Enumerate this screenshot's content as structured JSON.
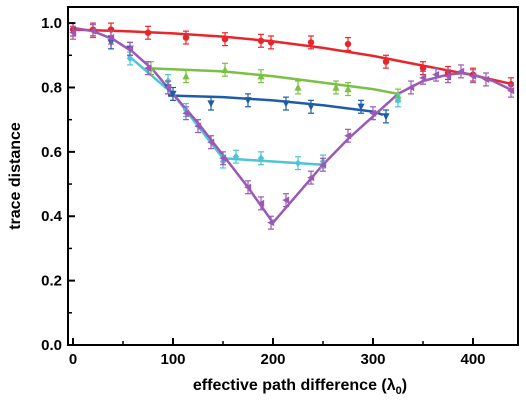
{
  "chart_data": {
    "type": "scatter",
    "title": "",
    "xlabel": "effective path difference (λ",
    "xlabel_subscript": "0",
    "xlabel_suffix": ")",
    "ylabel": "trace distance",
    "xlim": [
      -5,
      445
    ],
    "ylim": [
      0.0,
      1.05
    ],
    "x_ticks": [
      0,
      100,
      200,
      300,
      400
    ],
    "y_ticks": [
      0.0,
      0.2,
      0.4,
      0.6,
      0.8,
      1.0
    ],
    "x_tick_labels": [
      "0",
      "100",
      "200",
      "300",
      "400"
    ],
    "y_tick_labels": [
      "0.0",
      "0.2",
      "0.4",
      "0.6",
      "0.8",
      "1.0"
    ],
    "grid": false,
    "series": [
      {
        "color": "#e8262a",
        "marker": "circle",
        "fit_x": [
          0,
          20,
          50,
          100,
          150,
          200,
          250,
          300,
          350,
          400,
          440
        ],
        "fit_y": [
          0.98,
          0.978,
          0.975,
          0.968,
          0.958,
          0.943,
          0.923,
          0.898,
          0.868,
          0.838,
          0.81
        ],
        "points": [
          {
            "x": 0,
            "y": 0.98,
            "err": 0.02
          },
          {
            "x": 20,
            "y": 0.98,
            "err": 0.02
          },
          {
            "x": 38,
            "y": 0.98,
            "err": 0.02
          },
          {
            "x": 75,
            "y": 0.97,
            "err": 0.02
          },
          {
            "x": 113,
            "y": 0.955,
            "err": 0.02
          },
          {
            "x": 152,
            "y": 0.95,
            "err": 0.02
          },
          {
            "x": 188,
            "y": 0.945,
            "err": 0.02
          },
          {
            "x": 198,
            "y": 0.94,
            "err": 0.02
          },
          {
            "x": 238,
            "y": 0.94,
            "err": 0.02
          },
          {
            "x": 275,
            "y": 0.935,
            "err": 0.02
          },
          {
            "x": 313,
            "y": 0.88,
            "err": 0.02
          },
          {
            "x": 350,
            "y": 0.86,
            "err": 0.02
          },
          {
            "x": 375,
            "y": 0.845,
            "err": 0.02
          },
          {
            "x": 400,
            "y": 0.84,
            "err": 0.02
          },
          {
            "x": 438,
            "y": 0.81,
            "err": 0.02
          }
        ]
      },
      {
        "color": "#7ac143",
        "marker": "triangle-up",
        "fit_x": [
          75,
          150,
          200,
          250,
          300,
          325
        ],
        "fit_y": [
          0.86,
          0.85,
          0.835,
          0.815,
          0.795,
          0.78
        ],
        "points": [
          {
            "x": 78,
            "y": 0.86,
            "err": 0.02
          },
          {
            "x": 113,
            "y": 0.835,
            "err": 0.02
          },
          {
            "x": 152,
            "y": 0.855,
            "err": 0.02
          },
          {
            "x": 188,
            "y": 0.835,
            "err": 0.02
          },
          {
            "x": 225,
            "y": 0.8,
            "err": 0.02
          },
          {
            "x": 263,
            "y": 0.8,
            "err": 0.02
          },
          {
            "x": 275,
            "y": 0.795,
            "err": 0.02
          },
          {
            "x": 325,
            "y": 0.775,
            "err": 0.02
          }
        ]
      },
      {
        "color": "#1f5ca8",
        "marker": "triangle-down",
        "fit_x": [
          95,
          150,
          200,
          250,
          300,
          310
        ],
        "fit_y": [
          0.775,
          0.77,
          0.76,
          0.745,
          0.725,
          0.715
        ],
        "points": [
          {
            "x": 38,
            "y": 0.94,
            "err": 0.02
          },
          {
            "x": 57,
            "y": 0.92,
            "err": 0.02
          },
          {
            "x": 95,
            "y": 0.8,
            "err": 0.02
          },
          {
            "x": 100,
            "y": 0.78,
            "err": 0.02
          },
          {
            "x": 138,
            "y": 0.75,
            "err": 0.02
          },
          {
            "x": 175,
            "y": 0.76,
            "err": 0.02
          },
          {
            "x": 213,
            "y": 0.75,
            "err": 0.02
          },
          {
            "x": 238,
            "y": 0.74,
            "err": 0.02
          },
          {
            "x": 288,
            "y": 0.74,
            "err": 0.02
          },
          {
            "x": 313,
            "y": 0.71,
            "err": 0.02
          }
        ]
      },
      {
        "color": "#4fc4d4",
        "marker": "diamond",
        "fit_x": [
          55,
          100,
          150,
          200,
          250
        ],
        "fit_y": [
          0.9,
          0.78,
          0.58,
          0.57,
          0.56
        ],
        "points": [
          {
            "x": 57,
            "y": 0.89,
            "err": 0.02
          },
          {
            "x": 95,
            "y": 0.82,
            "err": 0.02
          },
          {
            "x": 113,
            "y": 0.73,
            "err": 0.02
          },
          {
            "x": 150,
            "y": 0.57,
            "err": 0.02
          },
          {
            "x": 163,
            "y": 0.585,
            "err": 0.02
          },
          {
            "x": 188,
            "y": 0.58,
            "err": 0.02
          },
          {
            "x": 225,
            "y": 0.565,
            "err": 0.02
          },
          {
            "x": 250,
            "y": 0.57,
            "err": 0.02
          },
          {
            "x": 325,
            "y": 0.76,
            "err": 0.02
          }
        ]
      },
      {
        "color": "#9b59b6",
        "marker": "triangle-left",
        "fit_x": [
          0,
          20,
          40,
          60,
          80,
          100,
          125,
          150,
          175,
          200,
          225,
          250,
          275,
          300,
          325,
          350,
          375,
          390,
          400,
          420,
          440
        ],
        "fit_y": [
          0.985,
          0.975,
          0.95,
          0.91,
          0.855,
          0.78,
          0.69,
          0.59,
          0.49,
          0.38,
          0.47,
          0.56,
          0.64,
          0.71,
          0.78,
          0.82,
          0.84,
          0.845,
          0.84,
          0.82,
          0.79
        ],
        "points": [
          {
            "x": 0,
            "y": 0.97,
            "err": 0.02
          },
          {
            "x": 20,
            "y": 0.975,
            "err": 0.02
          },
          {
            "x": 38,
            "y": 0.955,
            "err": 0.02
          },
          {
            "x": 57,
            "y": 0.92,
            "err": 0.02
          },
          {
            "x": 75,
            "y": 0.86,
            "err": 0.02
          },
          {
            "x": 95,
            "y": 0.8,
            "err": 0.02
          },
          {
            "x": 113,
            "y": 0.72,
            "err": 0.02
          },
          {
            "x": 125,
            "y": 0.68,
            "err": 0.02
          },
          {
            "x": 138,
            "y": 0.63,
            "err": 0.02
          },
          {
            "x": 150,
            "y": 0.58,
            "err": 0.02
          },
          {
            "x": 175,
            "y": 0.49,
            "err": 0.02
          },
          {
            "x": 188,
            "y": 0.44,
            "err": 0.02
          },
          {
            "x": 198,
            "y": 0.38,
            "err": 0.02
          },
          {
            "x": 213,
            "y": 0.45,
            "err": 0.02
          },
          {
            "x": 238,
            "y": 0.52,
            "err": 0.02
          },
          {
            "x": 250,
            "y": 0.56,
            "err": 0.02
          },
          {
            "x": 275,
            "y": 0.65,
            "err": 0.02
          },
          {
            "x": 300,
            "y": 0.72,
            "err": 0.02
          },
          {
            "x": 338,
            "y": 0.8,
            "err": 0.02
          },
          {
            "x": 350,
            "y": 0.83,
            "err": 0.02
          },
          {
            "x": 363,
            "y": 0.84,
            "err": 0.02
          },
          {
            "x": 375,
            "y": 0.835,
            "err": 0.02
          },
          {
            "x": 388,
            "y": 0.85,
            "err": 0.02
          },
          {
            "x": 400,
            "y": 0.835,
            "err": 0.02
          },
          {
            "x": 413,
            "y": 0.825,
            "err": 0.02
          },
          {
            "x": 438,
            "y": 0.79,
            "err": 0.02
          }
        ]
      }
    ]
  }
}
